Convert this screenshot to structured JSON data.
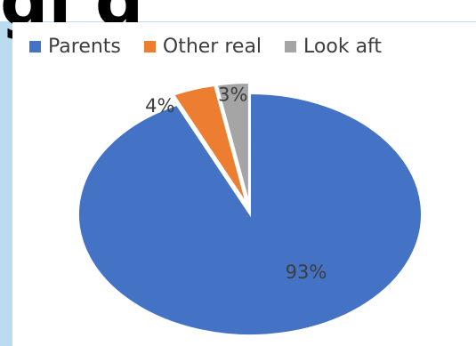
{
  "header": {
    "title_fragment": "gi      g"
  },
  "legend": [
    {
      "label": "Parents",
      "color": "#4472c4"
    },
    {
      "label": "Other real",
      "color": "#ed7d31"
    },
    {
      "label": "Look aft",
      "color": "#a5a5a5"
    }
  ],
  "chart_data": {
    "type": "pie",
    "title": "",
    "categories": [
      "Parents",
      "Other real",
      "Look aft"
    ],
    "values": [
      93,
      4,
      3
    ],
    "labels": [
      "93%",
      "4%",
      "3%"
    ],
    "colors": [
      "#4472c4",
      "#ed7d31",
      "#a5a5a5"
    ],
    "legend_position": "top",
    "exploded": [
      false,
      true,
      true
    ]
  }
}
